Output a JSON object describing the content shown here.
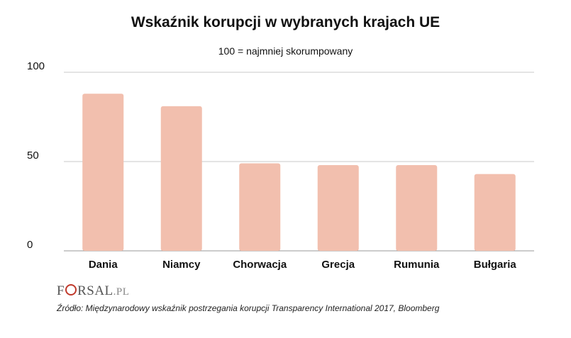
{
  "header": {
    "title": "Wskaźnik korupcji w wybranych krajach UE",
    "subtitle": "100 = najmniej skorumpowany"
  },
  "chart_data": {
    "type": "bar",
    "title": "Wskaźnik korupcji w wybranych krajach UE",
    "subtitle": "100 = najmniej skorumpowany",
    "categories": [
      "Dania",
      "Niamcy",
      "Chorwacja",
      "Grecja",
      "Rumunia",
      "Bułgaria"
    ],
    "values": [
      88,
      81,
      49,
      48,
      48,
      43
    ],
    "ylim": [
      0,
      100
    ],
    "yticks": [
      0,
      50,
      100
    ],
    "xlabel": "",
    "ylabel": "",
    "grid": true,
    "bar_color": "#f2bfae"
  },
  "footer": {
    "logo_text_a": "F",
    "logo_text_b": "RSAL",
    "logo_text_c": ".PL",
    "source": "Źródło: Międzynarodowy wskaźnik postrzegania korupcji Transparency International 2017, Bloomberg"
  },
  "colors": {
    "bar": "#f2bfae",
    "grid": "#c8c8c8",
    "logo_accent": "#c0392b"
  }
}
